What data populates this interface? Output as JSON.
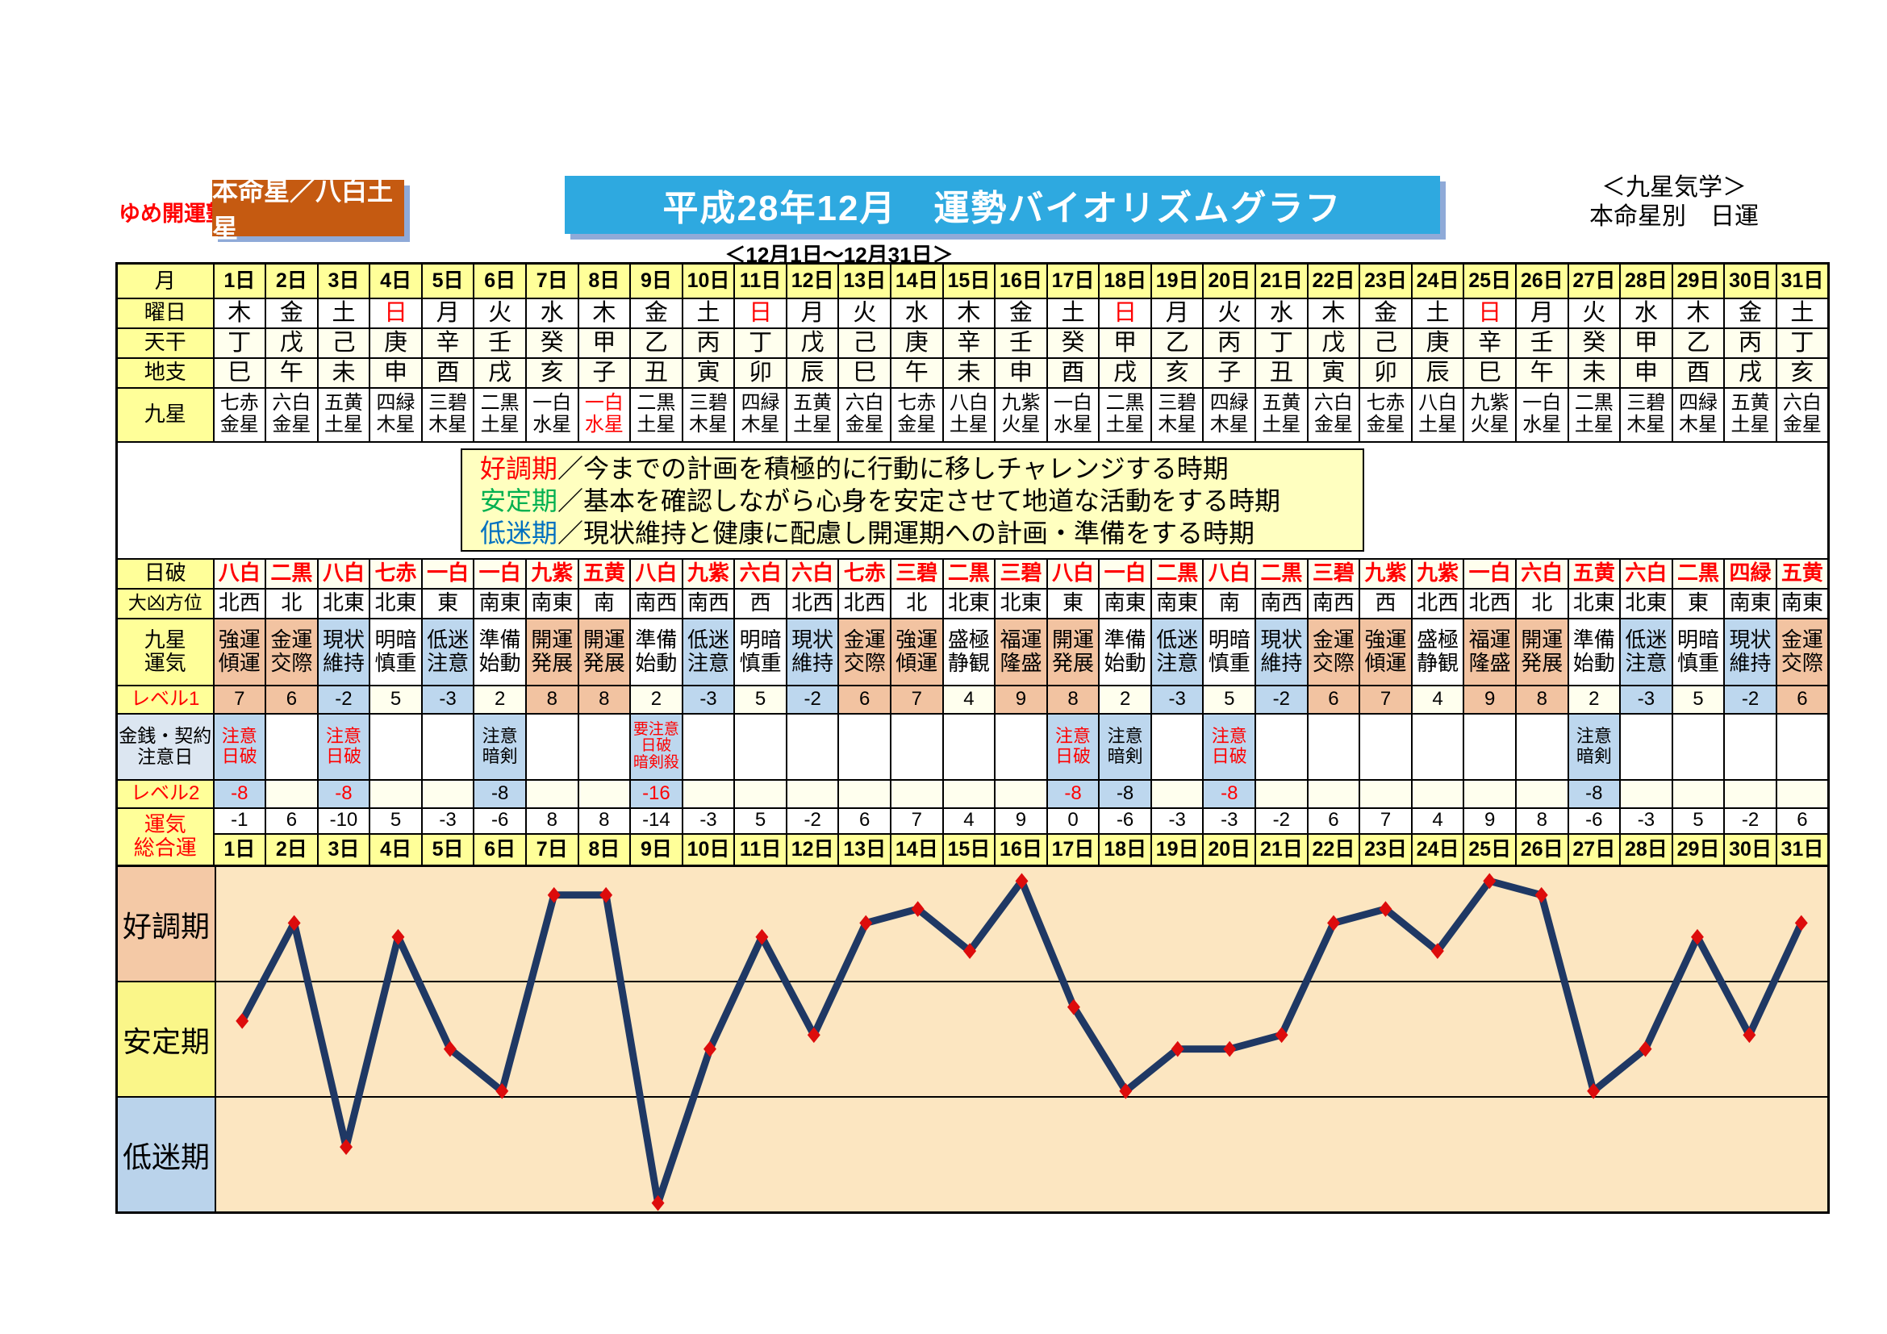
{
  "header": {
    "brand": "ゆめ開運塾",
    "badge": "本命星／八白土星",
    "title": "平成28年12月　運勢バイオリズムグラフ",
    "subtitle": "＜12月1日～12月31日＞",
    "top_right_line1": "＜九星気学＞",
    "top_right_line2": "本命星別　日運"
  },
  "legend": {
    "items": [
      {
        "term": "好調期",
        "color": "#FF0000",
        "desc": "／今までの計画を積極的に行動に移しチャレンジする時期"
      },
      {
        "term": "安定期",
        "color": "#00B050",
        "desc": "／基本を確認しながら心身を安定させて地道な活動をする時期"
      },
      {
        "term": "低迷期",
        "color": "#0070C0",
        "desc": "／現状維持と健康に配慮し開運期への計画・準備をする時期"
      }
    ]
  },
  "table": {
    "row_headers": {
      "month": "月",
      "youbi": "曜日",
      "tenkan": "天干",
      "chishi": "地支",
      "kyusei": "九星",
      "nippa": "日破",
      "daikyo": "大凶方位",
      "unki": "九星\n運気",
      "level1": "レベル1",
      "kinsen": "金銭・契約\n注意日",
      "level2": "レベル2",
      "sogo": "運気\n総合運"
    },
    "days": [
      "1日",
      "2日",
      "3日",
      "4日",
      "5日",
      "6日",
      "7日",
      "8日",
      "9日",
      "10日",
      "11日",
      "12日",
      "13日",
      "14日",
      "15日",
      "16日",
      "17日",
      "18日",
      "19日",
      "20日",
      "21日",
      "22日",
      "23日",
      "24日",
      "25日",
      "26日",
      "27日",
      "28日",
      "29日",
      "30日",
      "31日"
    ],
    "youbi": [
      "木",
      "金",
      "土",
      "日",
      "月",
      "火",
      "水",
      "木",
      "金",
      "土",
      "日",
      "月",
      "火",
      "水",
      "木",
      "金",
      "土",
      "日",
      "月",
      "火",
      "水",
      "木",
      "金",
      "土",
      "日",
      "月",
      "火",
      "水",
      "木",
      "金",
      "土"
    ],
    "tenkan": [
      "丁",
      "戊",
      "己",
      "庚",
      "辛",
      "壬",
      "癸",
      "甲",
      "乙",
      "丙",
      "丁",
      "戊",
      "己",
      "庚",
      "辛",
      "壬",
      "癸",
      "甲",
      "乙",
      "丙",
      "丁",
      "戊",
      "己",
      "庚",
      "辛",
      "壬",
      "癸",
      "甲",
      "乙",
      "丙",
      "丁"
    ],
    "chishi": [
      "巳",
      "午",
      "未",
      "申",
      "酉",
      "戌",
      "亥",
      "子",
      "丑",
      "寅",
      "卯",
      "辰",
      "巳",
      "午",
      "未",
      "申",
      "酉",
      "戌",
      "亥",
      "子",
      "丑",
      "寅",
      "卯",
      "辰",
      "巳",
      "午",
      "未",
      "申",
      "酉",
      "戌",
      "亥"
    ],
    "kyusei": [
      "七赤\n金星",
      "六白\n金星",
      "五黄\n土星",
      "四緑\n木星",
      "三碧\n木星",
      "二黒\n土星",
      "一白\n水星",
      "一白\n水星",
      "二黒\n土星",
      "三碧\n木星",
      "四緑\n木星",
      "五黄\n土星",
      "六白\n金星",
      "七赤\n金星",
      "八白\n土星",
      "九紫\n火星",
      "一白\n水星",
      "二黒\n土星",
      "三碧\n木星",
      "四緑\n木星",
      "五黄\n土星",
      "六白\n金星",
      "七赤\n金星",
      "八白\n土星",
      "九紫\n火星",
      "一白\n水星",
      "二黒\n土星",
      "三碧\n木星",
      "四緑\n木星",
      "五黄\n土星",
      "六白\n金星"
    ],
    "kyusei_red_days": [
      8
    ],
    "nippa": [
      "八白",
      "二黒",
      "八白",
      "七赤",
      "一白",
      "一白",
      "九紫",
      "五黄",
      "八白",
      "九紫",
      "六白",
      "六白",
      "七赤",
      "三碧",
      "二黒",
      "三碧",
      "八白",
      "一白",
      "二黒",
      "八白",
      "二黒",
      "三碧",
      "九紫",
      "九紫",
      "一白",
      "六白",
      "五黄",
      "六白",
      "二黒",
      "四緑",
      "五黄"
    ],
    "daikyo": [
      "北西",
      "北",
      "北東",
      "北東",
      "東",
      "南東",
      "南東",
      "南",
      "南西",
      "南西",
      "西",
      "北西",
      "北西",
      "北",
      "北東",
      "北東",
      "東",
      "南東",
      "南東",
      "南",
      "南西",
      "南西",
      "西",
      "北西",
      "北西",
      "北",
      "北東",
      "北東",
      "東",
      "南東",
      "南東"
    ],
    "unki": [
      "強運\n傾運",
      "金運\n交際",
      "現状\n維持",
      "明暗\n慎重",
      "低迷\n注意",
      "準備\n始動",
      "開運\n発展",
      "開運\n発展",
      "準備\n始動",
      "低迷\n注意",
      "明暗\n慎重",
      "現状\n維持",
      "金運\n交際",
      "強運\n傾運",
      "盛極\n静観",
      "福運\n隆盛",
      "開運\n発展",
      "準備\n始動",
      "低迷\n注意",
      "明暗\n慎重",
      "現状\n維持",
      "金運\n交際",
      "強運\n傾運",
      "盛極\n静観",
      "福運\n隆盛",
      "開運\n発展",
      "準備\n始動",
      "低迷\n注意",
      "明暗\n慎重",
      "現状\n維持",
      "金運\n交際"
    ],
    "level1": [
      7,
      6,
      -2,
      5,
      -3,
      2,
      8,
      8,
      2,
      -3,
      5,
      -2,
      6,
      7,
      4,
      9,
      8,
      2,
      -3,
      5,
      -2,
      6,
      7,
      4,
      9,
      8,
      2,
      -3,
      5,
      -2,
      6
    ],
    "kinsen": {
      "1": {
        "text": "注意\n日破",
        "red": true
      },
      "3": {
        "text": "注意\n日破",
        "red": true
      },
      "6": {
        "text": "注意\n暗剣",
        "red": false
      },
      "9": {
        "text": "要注意\n日破\n暗剣殺",
        "red": true,
        "small": true
      },
      "17": {
        "text": "注意\n日破",
        "red": true
      },
      "18": {
        "text": "注意\n暗剣",
        "red": false
      },
      "20": {
        "text": "注意\n日破",
        "red": true
      },
      "27": {
        "text": "注意\n暗剣",
        "red": false
      }
    },
    "level2": {
      "1": {
        "value": "-8",
        "red": true
      },
      "3": {
        "value": "-8",
        "red": true
      },
      "6": {
        "value": "-8",
        "red": false
      },
      "9": {
        "value": "-16",
        "red": true
      },
      "17": {
        "value": "-8",
        "red": true
      },
      "18": {
        "value": "-8",
        "red": false
      },
      "20": {
        "value": "-8",
        "red": true
      },
      "27": {
        "value": "-8",
        "red": false
      }
    },
    "sogo": [
      -1,
      6,
      -10,
      5,
      -3,
      -6,
      8,
      8,
      -14,
      -3,
      5,
      -2,
      6,
      7,
      4,
      9,
      0,
      -6,
      -3,
      -3,
      -2,
      6,
      7,
      4,
      9,
      8,
      -6,
      -3,
      5,
      -2,
      6
    ]
  },
  "chart_data": {
    "type": "line",
    "title": "平成28年12月　運勢バイオリズムグラフ",
    "series_name": "運気総合運",
    "categories": [
      "1日",
      "2日",
      "3日",
      "4日",
      "5日",
      "6日",
      "7日",
      "8日",
      "9日",
      "10日",
      "11日",
      "12日",
      "13日",
      "14日",
      "15日",
      "16日",
      "17日",
      "18日",
      "19日",
      "20日",
      "21日",
      "22日",
      "23日",
      "24日",
      "25日",
      "26日",
      "27日",
      "28日",
      "29日",
      "30日",
      "31日"
    ],
    "values": [
      -1,
      6,
      -10,
      5,
      -3,
      -6,
      8,
      8,
      -14,
      -3,
      5,
      -2,
      6,
      7,
      4,
      9,
      0,
      -6,
      -3,
      -3,
      -2,
      6,
      7,
      4,
      9,
      8,
      -6,
      -3,
      5,
      -2,
      6
    ],
    "ylim": [
      -14.6,
      10
    ],
    "bands": [
      {
        "label": "好調期",
        "from": 2,
        "to": 10
      },
      {
        "label": "安定期",
        "from": -6.3,
        "to": 2
      },
      {
        "label": "低迷期",
        "from": -14.6,
        "to": -6.3
      }
    ],
    "grid": false,
    "legend_position": "none",
    "line_color": "#1F3864",
    "marker": "diamond",
    "marker_color": "#DD0C0C"
  },
  "colors": {
    "brand_red": "#FF0000",
    "badge_orange": "#C55A11",
    "title_blue": "#2EA9E0",
    "shadow_blue": "#8FAAD8",
    "header_yellow": "#FFFF99",
    "ivory": "#FFFFEE",
    "salmon": "#F2C3A1",
    "cell_blue": "#BDD7EE",
    "kinsen_header_blue": "#DCE6F1",
    "legend_bg": "#FFFFC0",
    "plot_peach": "#FCE6C1",
    "band_salmon": "#F4C9A6",
    "band_yellow": "#FAF689",
    "band_blue": "#BAD3EB",
    "line_navy": "#1F3864",
    "marker_red": "#DD0C0C",
    "legend_green": "#00B050",
    "legend_blue": "#0070C0"
  }
}
